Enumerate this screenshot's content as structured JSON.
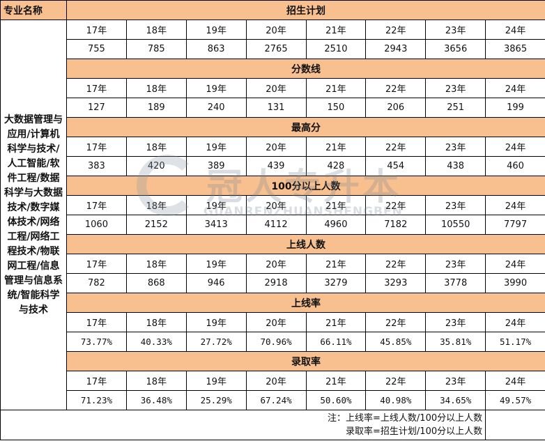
{
  "header": {
    "col_label": "专业名称"
  },
  "major": "大数据管理与应用/计算机科学与技术/人工智能/软件工程/数据科学与大数据技术/数字媒体技术/网络工程/网络工程技术/物联网工程/信息管理与信息系统/智能科学与技术",
  "years": [
    "17年",
    "18年",
    "19年",
    "20年",
    "21年",
    "22年",
    "23年",
    "24年"
  ],
  "sections": [
    {
      "title": "招生计划",
      "values": [
        "755",
        "785",
        "863",
        "2765",
        "2510",
        "2943",
        "3656",
        "3865"
      ]
    },
    {
      "title": "分数线",
      "values": [
        "127",
        "189",
        "240",
        "131",
        "150",
        "206",
        "251",
        "199"
      ]
    },
    {
      "title": "最高分",
      "values": [
        "383",
        "420",
        "389",
        "439",
        "428",
        "454",
        "438",
        "460"
      ]
    },
    {
      "title": "100分以上人数",
      "values": [
        "1060",
        "2152",
        "3413",
        "4112",
        "4960",
        "7182",
        "10550",
        "7797"
      ]
    },
    {
      "title": "上线人数",
      "values": [
        "782",
        "868",
        "946",
        "2918",
        "3279",
        "3293",
        "3778",
        "3990"
      ]
    },
    {
      "title": "上线率",
      "values": [
        "73.77%",
        "40.33%",
        "27.72%",
        "70.96%",
        "66.11%",
        "45.85%",
        "35.81%",
        "51.17%"
      ]
    },
    {
      "title": "录取率",
      "values": [
        "71.23%",
        "36.48%",
        "25.29%",
        "67.24%",
        "50.60%",
        "40.98%",
        "34.65%",
        "49.57%"
      ]
    }
  ],
  "notes": [
    "注：上线率=上线人数/100分以上人数",
    "录取率=招生计划/100分以上人数"
  ],
  "watermark": {
    "cn": "冠人专升本",
    "en": "GUANRENZHUANSHENGBEN"
  },
  "colors": {
    "header_fill": "#F8C08F",
    "border": "#000000"
  }
}
